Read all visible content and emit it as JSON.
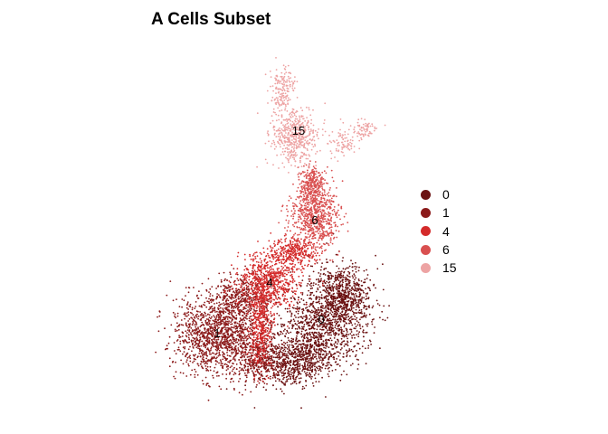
{
  "chart_data": {
    "type": "scatter",
    "title": "A Cells Subset",
    "xlabel": "",
    "ylabel": "",
    "grid": false,
    "legend_position": "right",
    "series": [
      {
        "name": "0",
        "color": "#6b1212",
        "label_text": "0",
        "label_pos": [
          355,
          354
        ],
        "regions": [
          {
            "cx": 378,
            "cy": 325,
            "rx": 30,
            "ry": 30,
            "n": 700
          },
          {
            "cx": 355,
            "cy": 360,
            "rx": 45,
            "ry": 38,
            "n": 900
          },
          {
            "cx": 325,
            "cy": 400,
            "rx": 40,
            "ry": 26,
            "n": 700
          }
        ]
      },
      {
        "name": "1",
        "color": "#8b1a1a",
        "label_text": "1",
        "label_pos": [
          240,
          369
        ],
        "regions": [
          {
            "cx": 240,
            "cy": 370,
            "rx": 42,
            "ry": 40,
            "n": 1300
          },
          {
            "cx": 268,
            "cy": 330,
            "rx": 28,
            "ry": 22,
            "n": 400
          },
          {
            "cx": 285,
            "cy": 395,
            "rx": 25,
            "ry": 25,
            "n": 350
          }
        ]
      },
      {
        "name": "4",
        "color": "#d42a2a",
        "label_text": "4",
        "label_pos": [
          298,
          313
        ],
        "regions": [
          {
            "cx": 298,
            "cy": 310,
            "rx": 30,
            "ry": 28,
            "n": 700
          },
          {
            "cx": 288,
            "cy": 362,
            "rx": 11,
            "ry": 42,
            "n": 400
          },
          {
            "cx": 325,
            "cy": 278,
            "rx": 22,
            "ry": 15,
            "n": 300
          }
        ]
      },
      {
        "name": "6",
        "color": "#d95050",
        "label_text": "6",
        "label_pos": [
          348,
          244
        ],
        "regions": [
          {
            "cx": 348,
            "cy": 240,
            "rx": 24,
            "ry": 32,
            "n": 700
          },
          {
            "cx": 345,
            "cy": 202,
            "rx": 13,
            "ry": 18,
            "n": 250
          }
        ]
      },
      {
        "name": "15",
        "color": "#eda3a3",
        "label_text": "15",
        "label_pos": [
          330,
          145
        ],
        "regions": [
          {
            "cx": 325,
            "cy": 150,
            "rx": 22,
            "ry": 30,
            "n": 500
          },
          {
            "cx": 312,
            "cy": 97,
            "rx": 12,
            "ry": 20,
            "n": 150
          },
          {
            "cx": 378,
            "cy": 158,
            "rx": 14,
            "ry": 16,
            "n": 80
          },
          {
            "cx": 402,
            "cy": 144,
            "rx": 13,
            "ry": 10,
            "n": 70
          }
        ]
      }
    ]
  }
}
